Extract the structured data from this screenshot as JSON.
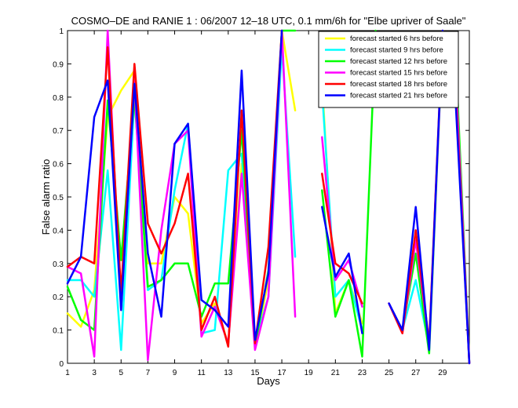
{
  "chart_data": {
    "type": "line",
    "title": "COSMO–DE and RANIE 1 : 06/2007 12–18 UTC, 0.1 mm/6h for \"Elbe upriver of Saale\"",
    "xlabel": "Days",
    "ylabel": "False alarm ratio",
    "xlim": [
      1,
      31
    ],
    "ylim": [
      0,
      1
    ],
    "xticks": [
      "1",
      "3",
      "5",
      "7",
      "9",
      "11",
      "13",
      "15",
      "17",
      "19",
      "21",
      "23",
      "25",
      "27",
      "29"
    ],
    "yticks": [
      "0",
      "0.1",
      "0.2",
      "0.3",
      "0.4",
      "0.5",
      "0.6",
      "0.7",
      "0.8",
      "0.9",
      "1"
    ],
    "x": [
      1,
      2,
      3,
      4,
      5,
      6,
      7,
      8,
      9,
      10,
      11,
      12,
      13,
      14,
      15,
      16,
      17,
      18,
      19,
      20,
      21,
      22,
      23,
      24,
      25,
      26,
      27,
      28,
      29,
      30,
      31
    ],
    "legend_position": "top-right",
    "series": [
      {
        "name": "forecast started 6 hrs before",
        "color": "#ffff00",
        "values": [
          0.15,
          0.11,
          0.22,
          0.74,
          0.82,
          0.88,
          0.3,
          0.3,
          0.5,
          0.45,
          0.12,
          0.18,
          0.06,
          0.6,
          0.05,
          0.25,
          1.0,
          0.76,
          null,
          0.85,
          0.15,
          0.25,
          0.12,
          null,
          null,
          null,
          null,
          null,
          null,
          null,
          null
        ]
      },
      {
        "name": "forecast started 9 hrs before",
        "color": "#00ffff",
        "values": [
          0.25,
          0.25,
          0.2,
          0.58,
          0.04,
          0.8,
          0.22,
          0.25,
          0.52,
          0.72,
          0.09,
          0.1,
          0.58,
          0.63,
          0.06,
          0.2,
          0.95,
          0.32,
          null,
          0.82,
          0.2,
          0.25,
          0.1,
          null,
          null,
          0.1,
          0.25,
          0.05,
          null,
          null,
          null
        ]
      },
      {
        "name": "forecast started 12 hrs before",
        "color": "#00ff00",
        "values": [
          0.23,
          0.13,
          0.1,
          0.79,
          0.31,
          0.8,
          0.23,
          0.25,
          0.3,
          0.3,
          0.14,
          0.24,
          0.24,
          0.7,
          0.05,
          0.28,
          1.0,
          1.0,
          null,
          0.52,
          0.14,
          0.25,
          0.02,
          1.0,
          null,
          0.1,
          0.33,
          0.03,
          0.98,
          0.91,
          0.0
        ]
      },
      {
        "name": "forecast started 15 hrs before",
        "color": "#ff00ff",
        "values": [
          0.29,
          0.27,
          0.02,
          1.0,
          0.16,
          0.85,
          0.01,
          0.4,
          0.66,
          0.7,
          0.08,
          0.17,
          0.06,
          0.57,
          0.04,
          0.2,
          1.0,
          0.14,
          null,
          0.68,
          0.25,
          0.31,
          0.17,
          null,
          0.18,
          0.09,
          0.37,
          0.06,
          0.98,
          0.85,
          0.0
        ]
      },
      {
        "name": "forecast started 18 hrs before",
        "color": "#ff0000",
        "values": [
          0.29,
          0.32,
          0.3,
          0.95,
          0.21,
          0.9,
          0.42,
          0.33,
          0.42,
          0.57,
          0.1,
          0.2,
          0.05,
          0.76,
          0.06,
          0.35,
          1.0,
          null,
          null,
          0.57,
          0.3,
          0.27,
          0.18,
          null,
          0.18,
          0.09,
          0.4,
          0.06,
          1.0,
          0.8,
          0.0
        ]
      },
      {
        "name": "forecast started 21 hrs before",
        "color": "#0000ff",
        "values": [
          0.24,
          0.32,
          0.74,
          0.85,
          0.16,
          0.84,
          0.33,
          0.14,
          0.66,
          0.72,
          0.19,
          0.16,
          0.11,
          0.88,
          0.07,
          0.27,
          1.0,
          null,
          null,
          0.47,
          0.26,
          0.33,
          0.09,
          null,
          0.18,
          0.1,
          0.47,
          0.04,
          1.0,
          0.77,
          0.0
        ]
      }
    ]
  }
}
